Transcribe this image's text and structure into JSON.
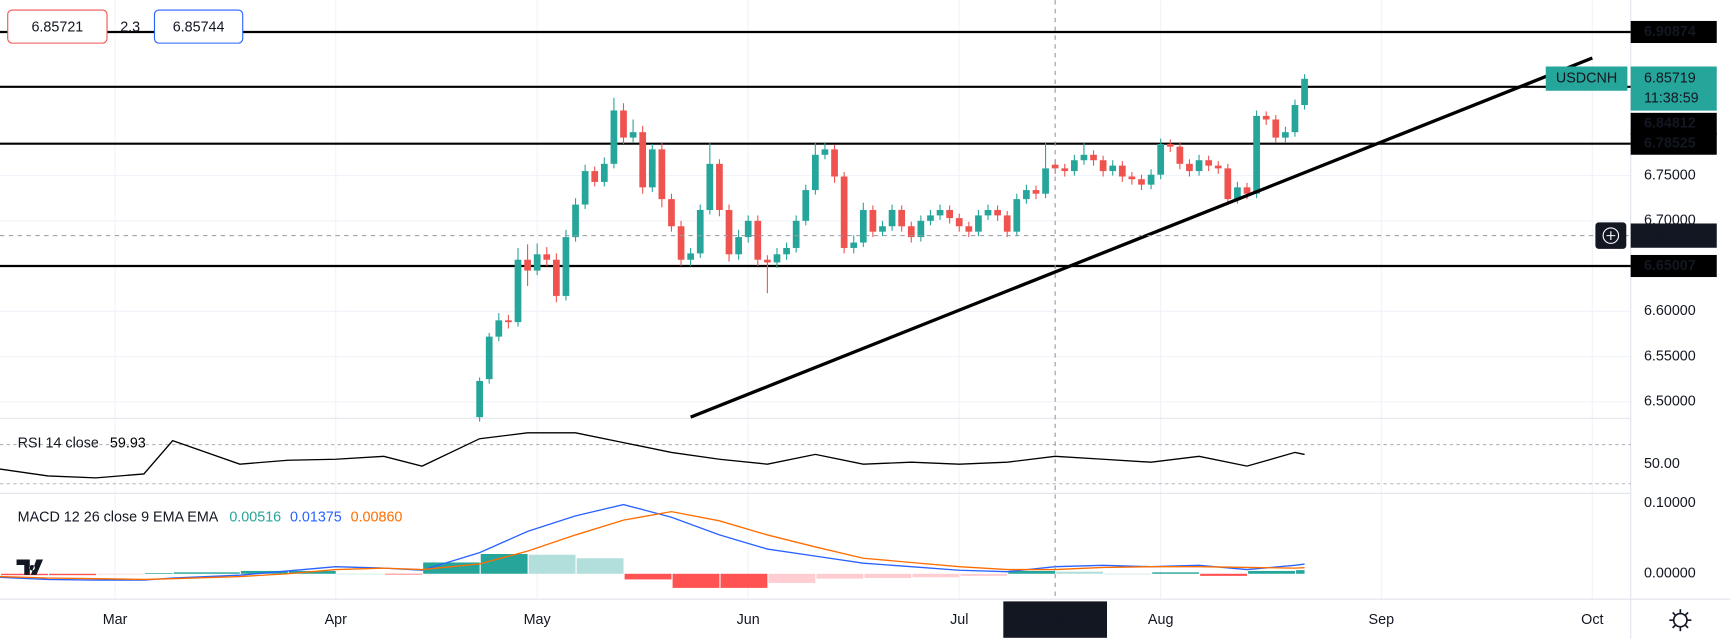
{
  "chart_data": {
    "type": "candlestick",
    "symbol": "USDCNH",
    "countdown": "11:38:59",
    "last_price": 6.85719,
    "header": {
      "bid": 6.85721,
      "spread": 2.3,
      "ask": 6.85744
    },
    "colors": {
      "up": "#26a69a",
      "down": "#ef5350",
      "line": "#000000",
      "grid": "#f0f3fa"
    },
    "xlim": [
      "2022-02-11",
      "2022-10-07"
    ],
    "xticks": [
      {
        "value": "2022-03-01",
        "label": "Mar"
      },
      {
        "value": "2022-04-01",
        "label": "Apr"
      },
      {
        "value": "2022-05-02",
        "label": "May"
      },
      {
        "value": "2022-06-01",
        "label": "Jun"
      },
      {
        "value": "2022-07-01",
        "label": "Jul"
      },
      {
        "value": "2022-08-01",
        "label": "Aug"
      },
      {
        "value": "2022-09-01",
        "label": "Sep"
      },
      {
        "value": "2022-10-03",
        "label": "Oct"
      }
    ],
    "ylim": [
      6.483,
      6.944
    ],
    "yticks": [
      {
        "value": 6.5,
        "label": "6.50000"
      },
      {
        "value": 6.55,
        "label": "6.55000"
      },
      {
        "value": 6.6,
        "label": "6.60000"
      },
      {
        "value": 6.65,
        "label": "6.65000"
      },
      {
        "value": 6.7,
        "label": "6.70000"
      },
      {
        "value": 6.75,
        "label": "6.75000"
      }
    ],
    "grid": true,
    "levels": [
      6.90874,
      6.84812,
      6.78525,
      6.65007
    ],
    "trendline": {
      "x": [
        "2022-05-24",
        "2022-10-03"
      ],
      "values": [
        6.483,
        6.88
      ]
    },
    "crosshair": {
      "x": "2022-07-15",
      "x_label": "15 Jul '22",
      "y": 6.68365
    },
    "x": [
      "2022-04-22",
      "2022-04-25",
      "2022-04-26",
      "2022-04-27",
      "2022-04-28",
      "2022-04-29",
      "2022-05-02",
      "2022-05-03",
      "2022-05-04",
      "2022-05-05",
      "2022-05-06",
      "2022-05-09",
      "2022-05-10",
      "2022-05-11",
      "2022-05-12",
      "2022-05-13",
      "2022-05-16",
      "2022-05-17",
      "2022-05-18",
      "2022-05-19",
      "2022-05-20",
      "2022-05-23",
      "2022-05-24",
      "2022-05-25",
      "2022-05-26",
      "2022-05-27",
      "2022-05-30",
      "2022-05-31",
      "2022-06-01",
      "2022-06-02",
      "2022-06-03",
      "2022-06-06",
      "2022-06-07",
      "2022-06-08",
      "2022-06-09",
      "2022-06-10",
      "2022-06-13",
      "2022-06-14",
      "2022-06-15",
      "2022-06-16",
      "2022-06-17",
      "2022-06-20",
      "2022-06-21",
      "2022-06-22",
      "2022-06-23",
      "2022-06-24",
      "2022-06-27",
      "2022-06-28",
      "2022-06-29",
      "2022-06-30",
      "2022-07-01",
      "2022-07-04",
      "2022-07-05",
      "2022-07-06",
      "2022-07-07",
      "2022-07-08",
      "2022-07-11",
      "2022-07-12",
      "2022-07-13",
      "2022-07-14",
      "2022-07-15",
      "2022-07-18",
      "2022-07-19",
      "2022-07-20",
      "2022-07-21",
      "2022-07-22",
      "2022-07-25",
      "2022-07-26",
      "2022-07-27",
      "2022-07-28",
      "2022-07-29",
      "2022-08-01",
      "2022-08-02",
      "2022-08-03",
      "2022-08-04",
      "2022-08-05",
      "2022-08-08",
      "2022-08-09",
      "2022-08-10",
      "2022-08-11",
      "2022-08-12",
      "2022-08-15",
      "2022-08-16",
      "2022-08-17",
      "2022-08-18",
      "2022-08-19",
      "2022-08-22"
    ],
    "open": [
      6.483,
      6.525,
      6.572,
      6.59,
      6.588,
      6.657,
      6.645,
      6.663,
      6.657,
      6.617,
      6.682,
      6.718,
      6.755,
      6.743,
      6.763,
      6.822,
      6.792,
      6.798,
      6.737,
      6.779,
      6.724,
      6.694,
      6.657,
      6.664,
      6.712,
      6.763,
      6.712,
      6.663,
      6.682,
      6.7,
      6.657,
      6.654,
      6.663,
      6.67,
      6.7,
      6.734,
      6.773,
      6.779,
      6.749,
      6.67,
      6.676,
      6.712,
      6.688,
      6.694,
      6.712,
      6.694,
      6.682,
      6.7,
      6.706,
      6.712,
      6.703,
      6.694,
      6.688,
      6.706,
      6.712,
      6.706,
      6.688,
      6.724,
      6.734,
      6.73,
      6.762,
      6.758,
      6.755,
      6.767,
      6.773,
      6.767,
      6.755,
      6.761,
      6.749,
      6.746,
      6.74,
      6.751,
      6.785,
      6.782,
      6.763,
      6.755,
      6.767,
      6.761,
      6.758,
      6.724,
      6.737,
      6.73,
      6.816,
      6.812,
      6.792,
      6.798,
      6.828
    ],
    "high": [
      6.527,
      6.576,
      6.598,
      6.596,
      6.67,
      6.674,
      6.675,
      6.671,
      6.664,
      6.69,
      6.725,
      6.762,
      6.76,
      6.77,
      6.836,
      6.83,
      6.812,
      6.805,
      6.785,
      6.786,
      6.73,
      6.7,
      6.67,
      6.718,
      6.786,
      6.768,
      6.718,
      6.69,
      6.706,
      6.706,
      6.662,
      6.67,
      6.676,
      6.706,
      6.74,
      6.786,
      6.786,
      6.784,
      6.754,
      6.684,
      6.72,
      6.717,
      6.7,
      6.718,
      6.717,
      6.699,
      6.706,
      6.712,
      6.718,
      6.717,
      6.708,
      6.699,
      6.712,
      6.718,
      6.717,
      6.711,
      6.73,
      6.74,
      6.739,
      6.786,
      6.767,
      6.763,
      6.773,
      6.786,
      6.778,
      6.772,
      6.767,
      6.766,
      6.754,
      6.751,
      6.757,
      6.791,
      6.79,
      6.787,
      6.768,
      6.773,
      6.772,
      6.766,
      6.763,
      6.743,
      6.742,
      6.822,
      6.821,
      6.817,
      6.804,
      6.834,
      6.862
    ],
    "low": [
      6.478,
      6.52,
      6.567,
      6.581,
      6.583,
      6.628,
      6.64,
      6.65,
      6.61,
      6.612,
      6.677,
      6.713,
      6.738,
      6.738,
      6.758,
      6.785,
      6.787,
      6.73,
      6.732,
      6.715,
      6.688,
      6.65,
      6.65,
      6.659,
      6.707,
      6.705,
      6.655,
      6.657,
      6.676,
      6.65,
      6.62,
      6.648,
      6.657,
      6.665,
      6.695,
      6.729,
      6.768,
      6.742,
      6.664,
      6.664,
      6.671,
      6.682,
      6.683,
      6.689,
      6.688,
      6.676,
      6.677,
      6.695,
      6.701,
      6.697,
      6.688,
      6.682,
      6.683,
      6.701,
      6.7,
      6.682,
      6.683,
      6.719,
      6.724,
      6.725,
      6.752,
      6.749,
      6.75,
      6.762,
      6.761,
      6.749,
      6.75,
      6.743,
      6.74,
      6.734,
      6.735,
      6.746,
      6.776,
      6.757,
      6.749,
      6.75,
      6.755,
      6.752,
      6.718,
      6.719,
      6.724,
      6.725,
      6.806,
      6.786,
      6.787,
      6.793,
      6.823
    ],
    "close": [
      6.523,
      6.572,
      6.59,
      6.588,
      6.657,
      6.645,
      6.663,
      6.657,
      6.617,
      6.682,
      6.718,
      6.755,
      6.743,
      6.763,
      6.822,
      6.792,
      6.798,
      6.737,
      6.779,
      6.724,
      6.694,
      6.657,
      6.664,
      6.712,
      6.763,
      6.712,
      6.663,
      6.682,
      6.7,
      6.657,
      6.654,
      6.663,
      6.67,
      6.7,
      6.734,
      6.773,
      6.779,
      6.749,
      6.67,
      6.676,
      6.712,
      6.688,
      6.694,
      6.712,
      6.694,
      6.682,
      6.7,
      6.706,
      6.712,
      6.703,
      6.694,
      6.688,
      6.706,
      6.712,
      6.706,
      6.688,
      6.724,
      6.734,
      6.73,
      6.758,
      6.758,
      6.755,
      6.767,
      6.773,
      6.767,
      6.755,
      6.761,
      6.749,
      6.746,
      6.74,
      6.751,
      6.785,
      6.782,
      6.763,
      6.755,
      6.767,
      6.761,
      6.758,
      6.724,
      6.737,
      6.73,
      6.816,
      6.812,
      6.792,
      6.798,
      6.828,
      6.857
    ],
    "indicator_x": [
      "2022-02-11",
      "2022-02-18",
      "2022-02-25",
      "2022-03-04",
      "2022-03-09",
      "2022-03-18",
      "2022-03-25",
      "2022-04-01",
      "2022-04-08",
      "2022-04-14",
      "2022-04-22",
      "2022-04-29",
      "2022-05-06",
      "2022-05-13",
      "2022-05-20",
      "2022-05-27",
      "2022-06-03",
      "2022-06-10",
      "2022-06-17",
      "2022-06-24",
      "2022-07-01",
      "2022-07-08",
      "2022-07-15",
      "2022-07-22",
      "2022-07-29",
      "2022-08-05",
      "2022-08-12",
      "2022-08-19",
      "2022-08-22"
    ],
    "rsi": {
      "label": "RSI 14 close",
      "color": "#000000",
      "ylim": [
        21.4,
        96.9
      ],
      "yticks": [
        {
          "value": 50,
          "label": "50.00"
        }
      ],
      "bands": [
        30,
        70
      ],
      "values": [
        45,
        38,
        36,
        40,
        74,
        50,
        54,
        55,
        58,
        48,
        76,
        82,
        82,
        72,
        62,
        55,
        50,
        60,
        50,
        52,
        50,
        52,
        58,
        55,
        52,
        58,
        48,
        62,
        59.93
      ]
    },
    "macd": {
      "label": "MACD 12 26 close 9 EMA EMA",
      "ylim": [
        -0.036,
        0.114
      ],
      "yticks": [
        {
          "value": 0.1,
          "label": "0.10000"
        },
        {
          "value": 0,
          "label": "0.00000"
        }
      ],
      "histogram": {
        "colors": [
          "#26a69a",
          "#b2dfdb",
          "#ff5252",
          "#ffcdd2"
        ],
        "values": [
          -0.001,
          -0.002,
          -0.002,
          -0.001,
          0.001,
          0.002,
          0.004,
          0.004,
          0,
          -0.001,
          0.016,
          0.028,
          0.027,
          0.022,
          -0.008,
          -0.02,
          -0.02,
          -0.013,
          -0.007,
          -0.006,
          -0.005,
          -0.003,
          0.004,
          0.003,
          0,
          0.002,
          -0.003,
          0.004,
          0.00516
        ]
      },
      "macd": {
        "color": "#2962ff",
        "values": [
          -0.005,
          -0.008,
          -0.009,
          -0.009,
          -0.006,
          -0.002,
          0.004,
          0.01,
          0.008,
          0.005,
          0.03,
          0.06,
          0.082,
          0.098,
          0.08,
          0.055,
          0.035,
          0.025,
          0.015,
          0.01,
          0.005,
          0.003,
          0.01,
          0.012,
          0.01,
          0.012,
          0.006,
          0.012,
          0.01375
        ]
      },
      "signal": {
        "color": "#ff6d00",
        "last_label": "0.00860",
        "values": [
          -0.004,
          -0.006,
          -0.007,
          -0.008,
          -0.007,
          -0.004,
          0,
          0.006,
          0.008,
          0.006,
          0.014,
          0.032,
          0.055,
          0.076,
          0.088,
          0.075,
          0.055,
          0.038,
          0.022,
          0.016,
          0.01,
          0.006,
          0.006,
          0.009,
          0.01,
          0.01,
          0.009,
          0.008,
          0.0086
        ]
      }
    }
  }
}
